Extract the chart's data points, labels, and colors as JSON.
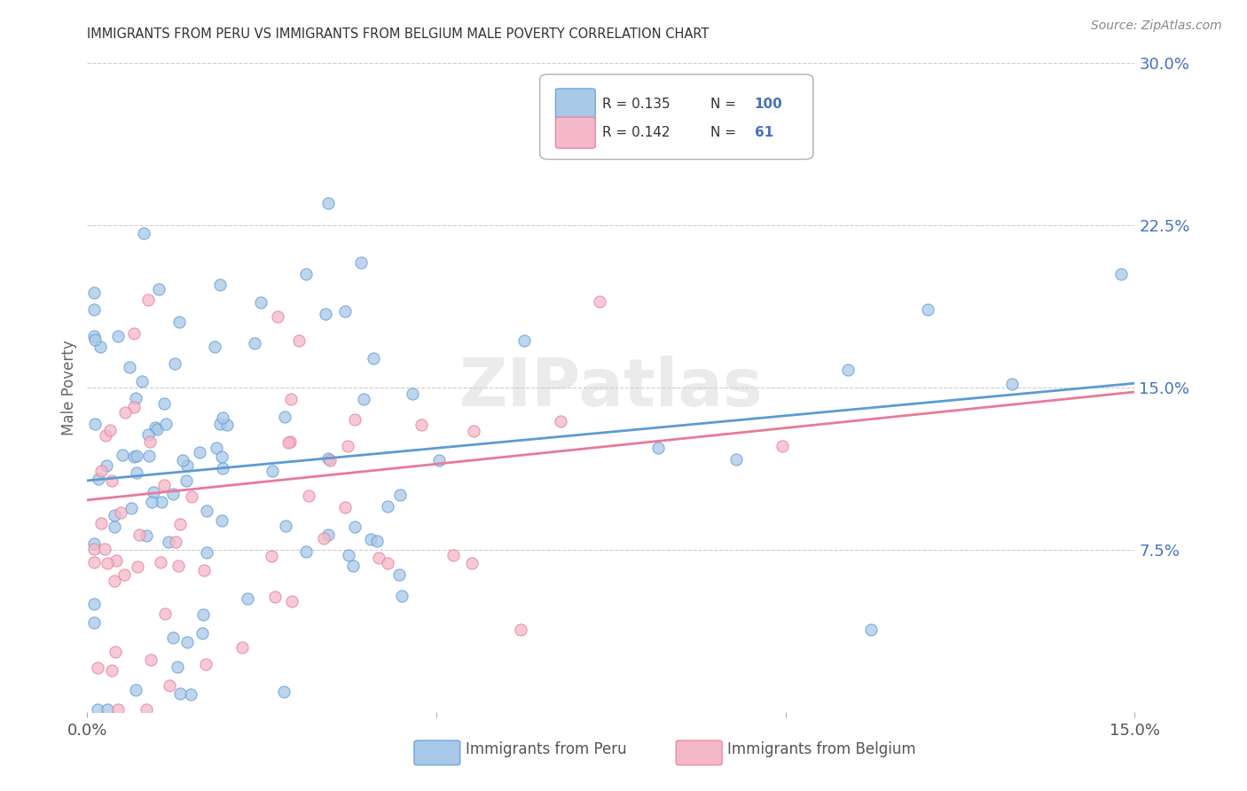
{
  "title": "IMMIGRANTS FROM PERU VS IMMIGRANTS FROM BELGIUM MALE POVERTY CORRELATION CHART",
  "source": "Source: ZipAtlas.com",
  "ylabel": "Male Poverty",
  "xlim": [
    0,
    0.15
  ],
  "ylim": [
    0,
    0.3
  ],
  "yticks_right": [
    0.075,
    0.15,
    0.225,
    0.3
  ],
  "ytick_right_labels": [
    "7.5%",
    "15.0%",
    "22.5%",
    "30.0%"
  ],
  "legend_r1": "R = 0.135",
  "legend_n1": "100",
  "legend_r2": "R = 0.142",
  "legend_n2": "61",
  "legend_label1": "Immigrants from Peru",
  "legend_label2": "Immigrants from Belgium",
  "color_peru": "#a8c8e8",
  "color_belgium": "#f4b8c8",
  "color_peru_line": "#5b9bd5",
  "color_belgium_line": "#e87a9a",
  "color_text_blue": "#4472c4",
  "trend_intercept_peru": 0.105,
  "trend_slope_peru": 0.3,
  "trend_intercept_belgium": 0.085,
  "trend_slope_belgium": 0.43
}
